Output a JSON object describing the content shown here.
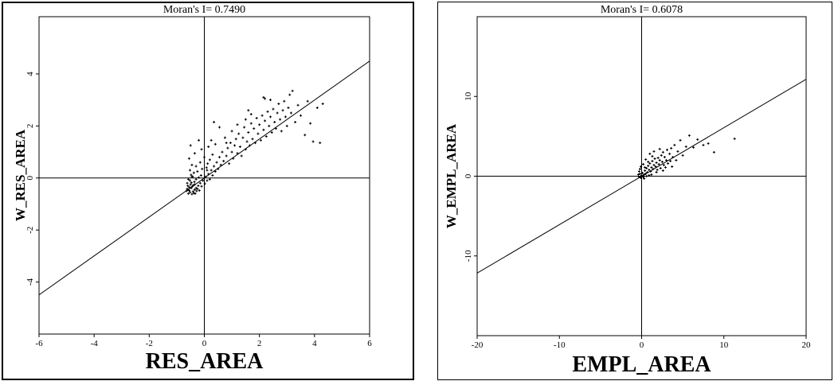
{
  "chart_data": [
    {
      "type": "scatter",
      "title": "Moran's I= 0.7490",
      "xlabel": "RES_AREA",
      "ylabel": "W_RES_AREA",
      "xlim": [
        -6,
        6
      ],
      "ylim": [
        -6,
        6.2
      ],
      "xticks": [
        -6,
        -4,
        -2,
        0,
        2,
        4,
        6
      ],
      "xtick_labels": [
        "-6",
        "-4",
        "-2",
        "0",
        "2",
        "4",
        "6"
      ],
      "yticks": [
        -4,
        -2,
        0,
        2,
        4
      ],
      "ytick_labels": [
        "-4",
        "-2",
        "0",
        "2",
        "4"
      ],
      "ytick_rotated": true,
      "regression_slope": 0.749,
      "grid": false,
      "points": [
        [
          -0.62,
          -0.42
        ],
        [
          -0.55,
          -0.48
        ],
        [
          -0.48,
          -0.39
        ],
        [
          -0.41,
          -0.52
        ],
        [
          -0.6,
          -0.3
        ],
        [
          -0.35,
          -0.45
        ],
        [
          -0.52,
          -0.55
        ],
        [
          -0.44,
          -0.33
        ],
        [
          -0.58,
          -0.6
        ],
        [
          -0.3,
          -0.38
        ],
        [
          -0.65,
          -0.5
        ],
        [
          -0.38,
          -0.58
        ],
        [
          -0.5,
          -0.25
        ],
        [
          -0.45,
          -0.62
        ],
        [
          -0.62,
          -0.2
        ],
        [
          -0.28,
          -0.5
        ],
        [
          -0.55,
          -0.35
        ],
        [
          -0.4,
          -0.28
        ],
        [
          -0.33,
          -0.6
        ],
        [
          -0.6,
          -0.45
        ],
        [
          -0.47,
          -0.18
        ],
        [
          -0.25,
          -0.42
        ],
        [
          -0.52,
          -0.1
        ],
        [
          -0.36,
          -0.15
        ],
        [
          -0.22,
          -0.3
        ],
        [
          -0.18,
          -0.48
        ],
        [
          -0.58,
          -0.05
        ],
        [
          -0.42,
          0.05
        ],
        [
          -0.3,
          -0.05
        ],
        [
          -0.15,
          -0.2
        ],
        [
          -0.48,
          0.12
        ],
        [
          -0.2,
          0.02
        ],
        [
          -0.1,
          -0.32
        ],
        [
          -0.05,
          -0.1
        ],
        [
          -0.38,
          0.2
        ],
        [
          -0.12,
          0.1
        ],
        [
          0.02,
          -0.22
        ],
        [
          -0.25,
          0.25
        ],
        [
          0.05,
          0.05
        ],
        [
          -0.52,
          0.3
        ],
        [
          0.1,
          -0.1
        ],
        [
          -0.08,
          0.35
        ],
        [
          0.15,
          0.15
        ],
        [
          -0.3,
          0.45
        ],
        [
          0.2,
          -0.05
        ],
        [
          0.08,
          0.4
        ],
        [
          -0.45,
          0.5
        ],
        [
          0.25,
          0.3
        ],
        [
          0.12,
          0.55
        ],
        [
          -0.15,
          0.6
        ],
        [
          0.3,
          0.1
        ],
        [
          0.35,
          0.45
        ],
        [
          -0.55,
          0.75
        ],
        [
          0.0,
          0.8
        ],
        [
          0.4,
          0.25
        ],
        [
          0.2,
          0.7
        ],
        [
          -0.35,
          0.95
        ],
        [
          0.45,
          0.6
        ],
        [
          0.5,
          0.35
        ],
        [
          -0.1,
          1.1
        ],
        [
          0.3,
          0.9
        ],
        [
          0.55,
          0.8
        ],
        [
          0.6,
          0.5
        ],
        [
          -0.5,
          1.25
        ],
        [
          0.15,
          1.2
        ],
        [
          0.7,
          0.65
        ],
        [
          0.65,
          1.0
        ],
        [
          0.4,
          1.3
        ],
        [
          0.8,
          0.85
        ],
        [
          0.85,
          1.15
        ],
        [
          0.9,
          0.55
        ],
        [
          0.25,
          1.45
        ],
        [
          1.0,
          1.0
        ],
        [
          0.95,
          1.35
        ],
        [
          1.05,
          0.75
        ],
        [
          1.1,
          1.25
        ],
        [
          0.75,
          1.55
        ],
        [
          1.15,
          1.5
        ],
        [
          1.2,
          0.95
        ],
        [
          1.25,
          1.7
        ],
        [
          1.3,
          1.2
        ],
        [
          1.35,
          0.85
        ],
        [
          1.0,
          1.8
        ],
        [
          1.4,
          1.55
        ],
        [
          1.45,
          1.95
        ],
        [
          1.5,
          1.1
        ],
        [
          1.55,
          1.4
        ],
        [
          1.2,
          2.05
        ],
        [
          1.6,
          1.75
        ],
        [
          1.65,
          1.25
        ],
        [
          1.7,
          2.1
        ],
        [
          1.75,
          1.5
        ],
        [
          1.8,
          1.9
        ],
        [
          1.5,
          2.25
        ],
        [
          1.85,
          1.35
        ],
        [
          1.9,
          2.3
        ],
        [
          1.95,
          1.7
        ],
        [
          2.0,
          2.05
        ],
        [
          2.05,
          1.45
        ],
        [
          1.7,
          2.45
        ],
        [
          2.1,
          2.4
        ],
        [
          2.15,
          1.85
        ],
        [
          2.2,
          2.2
        ],
        [
          2.25,
          1.6
        ],
        [
          2.3,
          2.55
        ],
        [
          2.35,
          2.0
        ],
        [
          2.4,
          2.35
        ],
        [
          2.45,
          1.75
        ],
        [
          2.5,
          2.65
        ],
        [
          2.55,
          2.15
        ],
        [
          2.6,
          1.9
        ],
        [
          2.65,
          2.5
        ],
        [
          2.7,
          2.85
        ],
        [
          2.75,
          2.25
        ],
        [
          2.8,
          1.8
        ],
        [
          2.85,
          2.6
        ],
        [
          2.9,
          2.95
        ],
        [
          2.95,
          2.35
        ],
        [
          3.0,
          2.0
        ],
        [
          3.05,
          2.7
        ],
        [
          3.1,
          3.2
        ],
        [
          3.15,
          2.5
        ],
        [
          3.2,
          3.35
        ],
        [
          3.3,
          2.15
        ],
        [
          3.4,
          2.8
        ],
        [
          3.5,
          2.4
        ],
        [
          3.65,
          1.65
        ],
        [
          3.75,
          2.95
        ],
        [
          3.85,
          2.1
        ],
        [
          3.95,
          1.4
        ],
        [
          4.1,
          2.7
        ],
        [
          4.2,
          1.35
        ],
        [
          4.3,
          2.85
        ],
        [
          2.15,
          3.1
        ],
        [
          2.2,
          3.05
        ],
        [
          0.55,
          1.95
        ],
        [
          0.35,
          2.15
        ],
        [
          -0.2,
          1.45
        ],
        [
          0.8,
          1.35
        ],
        [
          1.6,
          2.6
        ],
        [
          2.4,
          3.0
        ],
        [
          -0.45,
          0.05
        ],
        [
          -0.35,
          -0.25
        ],
        [
          0.1,
          0.3
        ]
      ]
    },
    {
      "type": "scatter",
      "title": "Moran's I= 0.6078",
      "xlabel": "EMPL_AREA",
      "ylabel": "W_EMPL_AREA",
      "xlim": [
        -20,
        20
      ],
      "ylim": [
        -20,
        20
      ],
      "xticks": [
        -20,
        -10,
        0,
        10,
        20
      ],
      "xtick_labels": [
        "-20",
        "-10",
        "0",
        "10",
        "20"
      ],
      "yticks": [
        -10,
        0,
        10
      ],
      "ytick_labels": [
        "-10",
        "0",
        "10"
      ],
      "ytick_rotated": true,
      "regression_slope": 0.6078,
      "grid": false,
      "points": [
        [
          -0.3,
          -0.1
        ],
        [
          -0.2,
          0.3
        ],
        [
          -0.1,
          -0.2
        ],
        [
          0.0,
          0.1
        ],
        [
          0.1,
          0.4
        ],
        [
          0.2,
          -0.1
        ],
        [
          0.3,
          0.2
        ],
        [
          -0.3,
          0.6
        ],
        [
          0.4,
          0.7
        ],
        [
          0.5,
          0.3
        ],
        [
          0.6,
          1.0
        ],
        [
          -0.2,
          0.9
        ],
        [
          0.7,
          0.5
        ],
        [
          0.8,
          1.3
        ],
        [
          0.9,
          0.8
        ],
        [
          1.0,
          1.6
        ],
        [
          1.1,
          0.6
        ],
        [
          1.2,
          1.1
        ],
        [
          1.3,
          1.9
        ],
        [
          1.4,
          0.9
        ],
        [
          1.5,
          1.4
        ],
        [
          1.6,
          2.2
        ],
        [
          1.7,
          1.2
        ],
        [
          1.8,
          1.7
        ],
        [
          1.9,
          0.8
        ],
        [
          2.0,
          2.3
        ],
        [
          2.1,
          1.5
        ],
        [
          2.2,
          2.0
        ],
        [
          2.3,
          1.0
        ],
        [
          2.4,
          2.6
        ],
        [
          2.5,
          1.8
        ],
        [
          2.6,
          3.0
        ],
        [
          2.7,
          1.4
        ],
        [
          2.8,
          2.4
        ],
        [
          3.0,
          2.0
        ],
        [
          3.1,
          3.3
        ],
        [
          3.2,
          1.6
        ],
        [
          3.4,
          2.8
        ],
        [
          3.5,
          1.9
        ],
        [
          3.6,
          3.5
        ],
        [
          3.8,
          2.4
        ],
        [
          4.0,
          3.9
        ],
        [
          4.2,
          2.0
        ],
        [
          4.4,
          3.1
        ],
        [
          4.7,
          4.5
        ],
        [
          5.0,
          2.6
        ],
        [
          5.4,
          3.7
        ],
        [
          5.8,
          5.1
        ],
        [
          6.3,
          3.6
        ],
        [
          6.8,
          4.6
        ],
        [
          7.5,
          3.9
        ],
        [
          8.1,
          4.1
        ],
        [
          8.8,
          3.0
        ],
        [
          11.3,
          4.7
        ],
        [
          0.5,
          2.1
        ],
        [
          1.0,
          2.8
        ],
        [
          0.2,
          1.5
        ],
        [
          1.5,
          3.1
        ],
        [
          -0.4,
          0.2
        ],
        [
          0.3,
          -0.3
        ],
        [
          0.6,
          0.0
        ],
        [
          1.2,
          0.2
        ],
        [
          1.8,
          0.5
        ],
        [
          2.9,
          1.1
        ],
        [
          3.7,
          1.2
        ],
        [
          0.8,
          1.8
        ],
        [
          -0.1,
          1.2
        ],
        [
          1.3,
          2.5
        ],
        [
          2.2,
          3.4
        ],
        [
          0.4,
          1.1
        ],
        [
          0.9,
          0.1
        ],
        [
          2.6,
          0.7
        ]
      ]
    }
  ]
}
